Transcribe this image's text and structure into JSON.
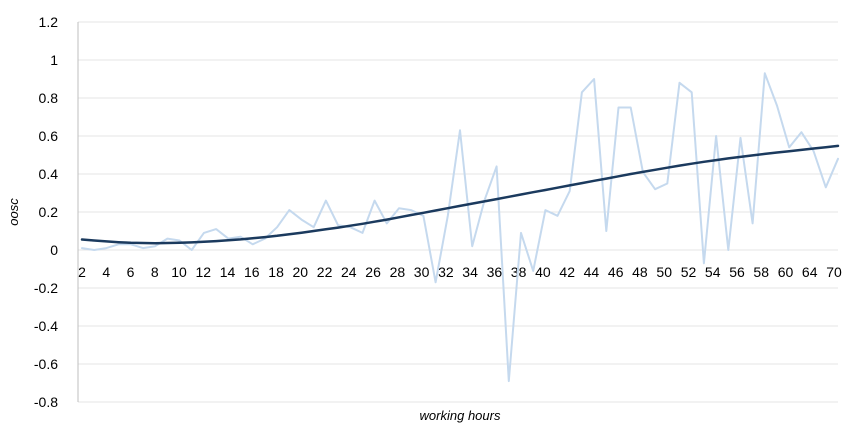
{
  "chart_data": {
    "type": "line",
    "xlabel": "working hours",
    "ylabel": "oosc",
    "ylim": [
      -0.8,
      1.2
    ],
    "y_ticks": [
      "1.2",
      "1",
      "0.8",
      "0.6",
      "0.4",
      "0.2",
      "0",
      "-0.2",
      "-0.4",
      "-0.6",
      "-0.8"
    ],
    "x_tick_labels": [
      "2",
      "4",
      "6",
      "8",
      "10",
      "12",
      "14",
      "16",
      "18",
      "20",
      "22",
      "24",
      "26",
      "28",
      "30",
      "32",
      "34",
      "36",
      "38",
      "40",
      "42",
      "44",
      "46",
      "48",
      "50",
      "52",
      "54",
      "56",
      "58",
      "60",
      "64",
      "70"
    ],
    "grid": true,
    "legend": "none",
    "series": [
      {
        "key": "observed",
        "color": "#c5d9ee",
        "values": [
          0.01,
          0.0,
          0.01,
          0.03,
          0.03,
          0.01,
          0.02,
          0.06,
          0.05,
          0.0,
          0.09,
          0.11,
          0.06,
          0.07,
          0.03,
          0.06,
          0.12,
          0.21,
          0.16,
          0.12,
          0.26,
          0.13,
          0.12,
          0.09,
          0.26,
          0.14,
          0.22,
          0.21,
          0.18,
          -0.17,
          0.18,
          0.63,
          0.02,
          0.26,
          0.44,
          -0.69,
          0.09,
          -0.11,
          0.21,
          0.18,
          0.31,
          0.83,
          0.9,
          0.1,
          0.75,
          0.75,
          0.41,
          0.32,
          0.35,
          0.88,
          0.83,
          -0.07,
          0.6,
          0.0,
          0.59,
          0.14,
          0.93,
          0.76,
          0.54,
          0.62,
          0.52,
          0.33,
          0.48
        ]
      },
      {
        "key": "trend",
        "color": "#1b3a5e",
        "values": [
          0.055,
          0.05,
          0.045,
          0.041,
          0.038,
          0.037,
          0.036,
          0.037,
          0.038,
          0.04,
          0.043,
          0.047,
          0.051,
          0.056,
          0.062,
          0.068,
          0.075,
          0.083,
          0.091,
          0.1,
          0.109,
          0.118,
          0.128,
          0.138,
          0.149,
          0.16,
          0.172,
          0.184,
          0.196,
          0.208,
          0.22,
          0.232,
          0.244,
          0.256,
          0.268,
          0.28,
          0.292,
          0.304,
          0.316,
          0.328,
          0.34,
          0.352,
          0.364,
          0.376,
          0.388,
          0.4,
          0.411,
          0.422,
          0.433,
          0.444,
          0.454,
          0.464,
          0.473,
          0.482,
          0.49,
          0.498,
          0.506,
          0.513,
          0.52,
          0.527,
          0.534,
          0.541,
          0.548
        ]
      }
    ]
  }
}
